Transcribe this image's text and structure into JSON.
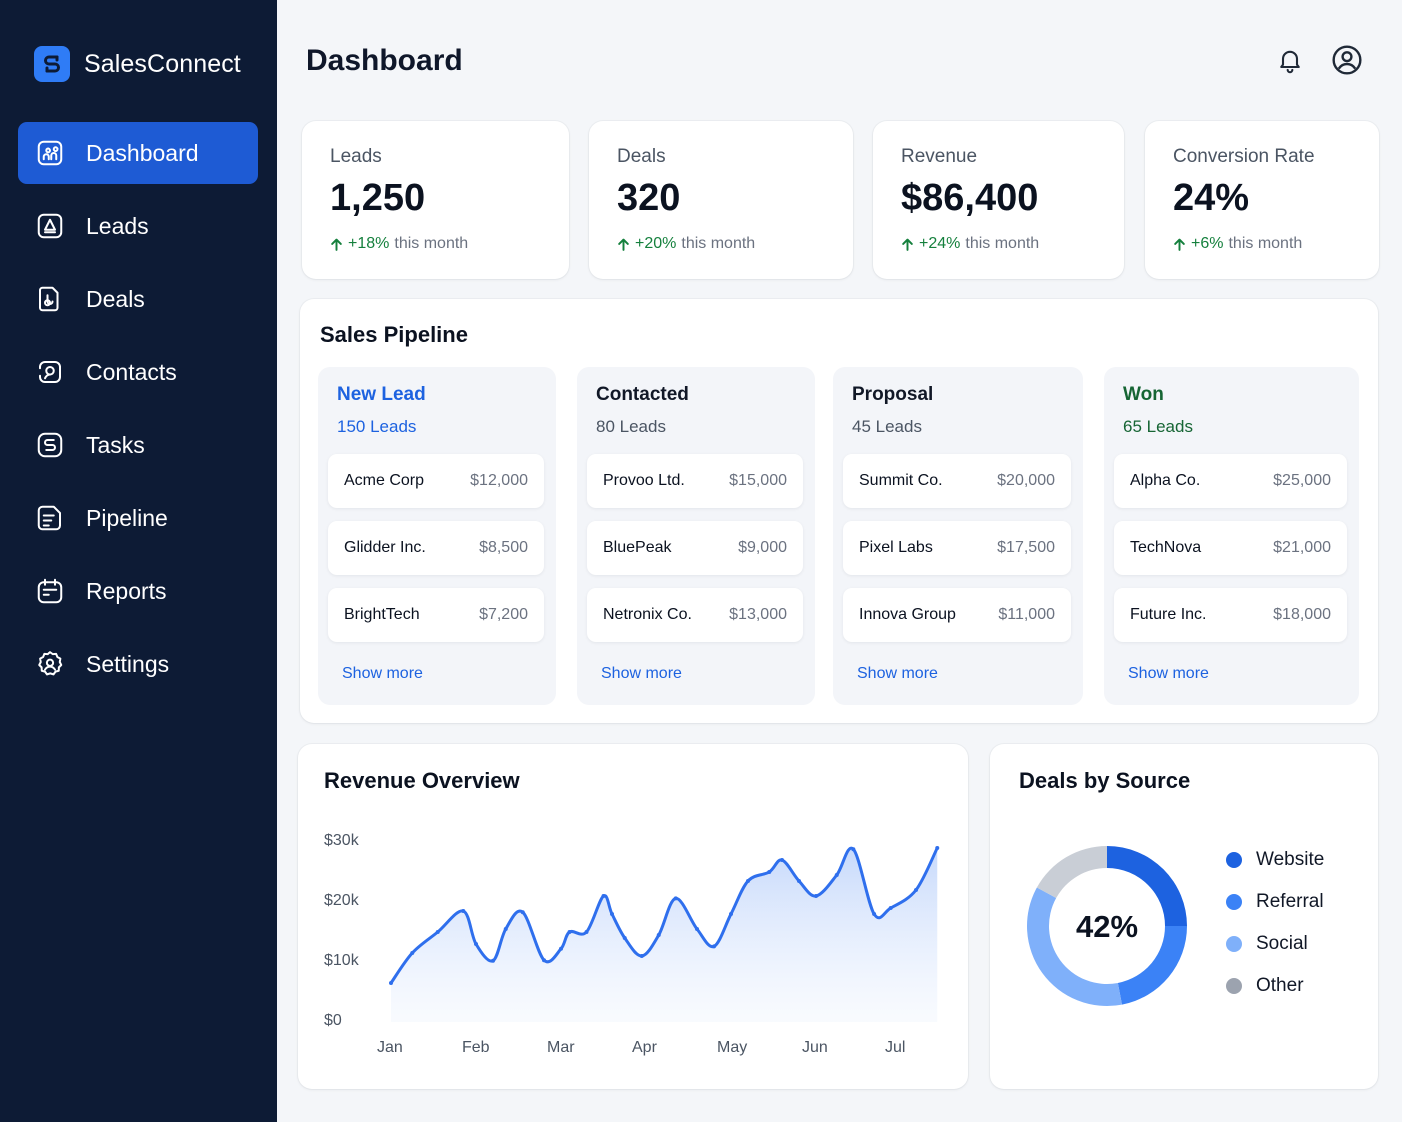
{
  "app": {
    "name": "SalesConnect"
  },
  "sidebar": {
    "items": [
      {
        "label": "Dashboard",
        "icon": "dashboard-icon"
      },
      {
        "label": "Leads",
        "icon": "leads-icon"
      },
      {
        "label": "Deals",
        "icon": "deals-icon"
      },
      {
        "label": "Contacts",
        "icon": "contacts-icon"
      },
      {
        "label": "Tasks",
        "icon": "tasks-icon"
      },
      {
        "label": "Pipeline",
        "icon": "pipeline-icon"
      },
      {
        "label": "Reports",
        "icon": "reports-icon"
      },
      {
        "label": "Settings",
        "icon": "settings-icon"
      }
    ],
    "active": "Dashboard"
  },
  "header": {
    "title": "Dashboard",
    "icons": [
      "bell-icon",
      "user-icon"
    ]
  },
  "stats": [
    {
      "label": "Leads",
      "value": "1,250",
      "change": "+18%",
      "period": "this month"
    },
    {
      "label": "Deals",
      "value": "320",
      "change": "+20%",
      "period": "this month"
    },
    {
      "label": "Revenue",
      "value": "$86,400",
      "change": "+24%",
      "period": "this month"
    },
    {
      "label": "Conversion Rate",
      "value": "24%",
      "change": "+6%",
      "period": "this month"
    }
  ],
  "pipeline": {
    "title": "Sales Pipeline",
    "show_more": "Show more",
    "columns": [
      {
        "name": "New Lead",
        "count": "150 Leads",
        "color": "#1d62e0",
        "deals": [
          {
            "name": "Acme Corp",
            "amount": "$12,000"
          },
          {
            "name": "Glidder Inc.",
            "amount": "$8,500"
          },
          {
            "name": "BrightTech",
            "amount": "$7,200"
          }
        ]
      },
      {
        "name": "Contacted",
        "count": "80 Leads",
        "color": "#111827",
        "deals": [
          {
            "name": "Provoo Ltd.",
            "amount": "$15,000"
          },
          {
            "name": "BluePeak",
            "amount": "$9,000"
          },
          {
            "name": "Netronix Co.",
            "amount": "$13,000"
          }
        ]
      },
      {
        "name": "Proposal",
        "count": "45 Leads",
        "color": "#111827",
        "deals": [
          {
            "name": "Summit Co.",
            "amount": "$20,000"
          },
          {
            "name": "Pixel Labs",
            "amount": "$17,500"
          },
          {
            "name": "Innova Group",
            "amount": "$11,000"
          }
        ]
      },
      {
        "name": "Won",
        "count": "65 Leads",
        "color": "#166534",
        "deals": [
          {
            "name": "Alpha Co.",
            "amount": "$25,000"
          },
          {
            "name": "TechNova",
            "amount": "$21,000"
          },
          {
            "name": "Future Inc.",
            "amount": "$18,000"
          }
        ]
      }
    ]
  },
  "revenue_overview": {
    "title": "Revenue Overview"
  },
  "deals_by_source": {
    "title": "Deals by Source",
    "center_label": "42%",
    "legend": [
      {
        "name": "Website",
        "color": "#1d62e0"
      },
      {
        "name": "Referral",
        "color": "#3b82f6"
      },
      {
        "name": "Social",
        "color": "#7fb0fa"
      },
      {
        "name": "Other",
        "color": "#9ca3af"
      }
    ]
  },
  "chart_data": [
    {
      "type": "area",
      "title": "Revenue Overview",
      "xlabel": "",
      "ylabel": "",
      "x_ticks": [
        "Jan",
        "Feb",
        "Mar",
        "Apr",
        "May",
        "Jun",
        "Jul"
      ],
      "y_ticks": [
        "$0",
        "$10k",
        "$20k",
        "$30k"
      ],
      "ylim": [
        0,
        30000
      ],
      "grid": false,
      "color": "#2f6fed",
      "x": [
        0,
        0.25,
        0.55,
        0.85,
        1.0,
        1.2,
        1.35,
        1.55,
        1.8,
        2.0,
        2.1,
        2.3,
        2.5,
        2.6,
        2.75,
        2.95,
        3.15,
        3.35,
        3.6,
        3.8,
        4.0,
        4.2,
        4.45,
        4.6,
        4.8,
        5.0,
        5.25,
        5.45,
        5.7,
        5.9,
        6.2,
        6.45
      ],
      "values": [
        6500,
        11500,
        15000,
        18500,
        13000,
        10200,
        15500,
        18300,
        10300,
        12200,
        15000,
        15000,
        21000,
        18000,
        14000,
        11000,
        14500,
        20600,
        15500,
        12600,
        18000,
        23500,
        25000,
        27000,
        23500,
        21000,
        24500,
        28800,
        18000,
        19000,
        22000,
        29000
      ]
    },
    {
      "type": "pie",
      "title": "Deals by Source",
      "categories": [
        "Website",
        "Referral",
        "Social",
        "Other"
      ],
      "values": [
        25,
        22,
        36,
        17
      ],
      "center_label": "42%"
    }
  ]
}
